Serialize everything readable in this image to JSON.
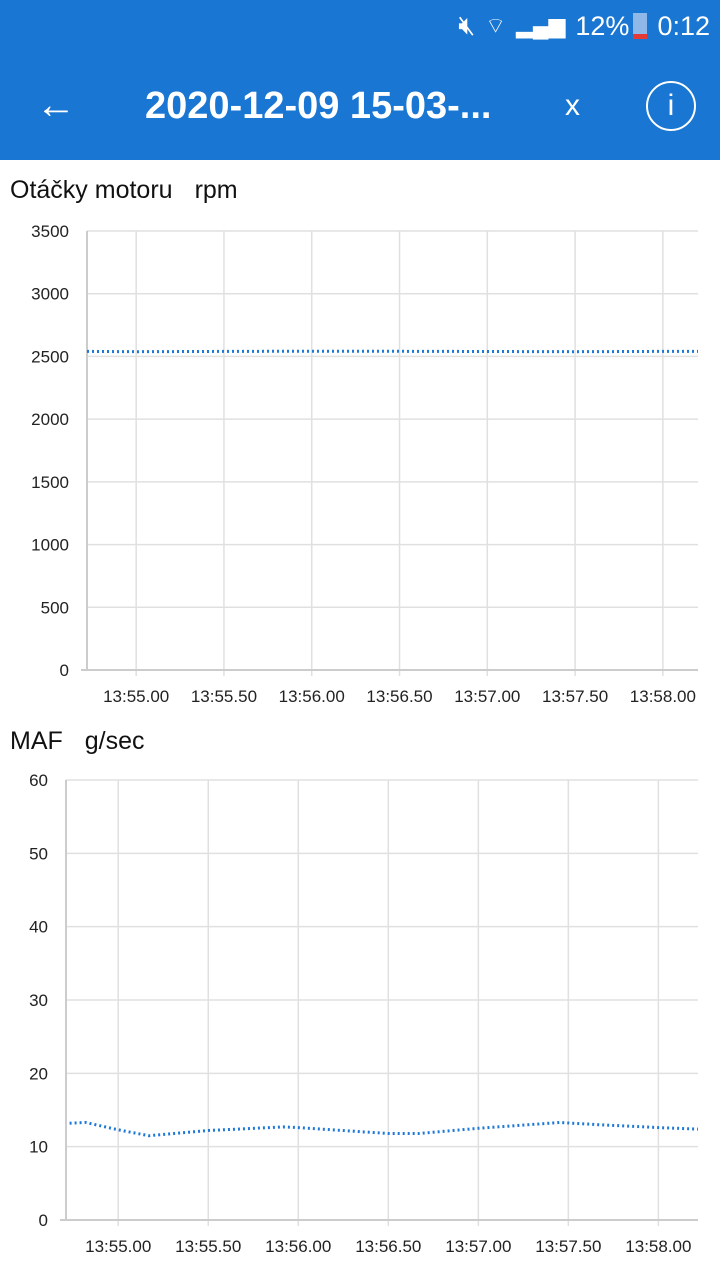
{
  "status_bar": {
    "icons": [
      "mute-icon",
      "wifi-icon",
      "signal-icon"
    ],
    "battery": "12%",
    "time": "0:12"
  },
  "app_bar": {
    "title": "2020-12-09 15-03-...",
    "close_label": "x",
    "info_label": "i"
  },
  "colors": {
    "accent": "#1976d2",
    "line": "#1e78d8",
    "grid": "#e0e0e0"
  },
  "chart_data": [
    {
      "type": "line",
      "title": "Otáčky motoru",
      "unit": "rpm",
      "ylim": [
        0,
        3500
      ],
      "yticks": [
        0,
        500,
        1000,
        1500,
        2000,
        2500,
        3000,
        3500
      ],
      "xlim": [
        54.72,
        58.2
      ],
      "xticks": [
        55.0,
        55.5,
        56.0,
        56.5,
        57.0,
        57.5,
        58.0
      ],
      "xtick_labels": [
        "13:55.00",
        "13:55.50",
        "13:56.00",
        "13:56.50",
        "13:57.00",
        "13:57.50",
        "13:58.00"
      ],
      "grid": true,
      "line_style": "dotted",
      "x": [
        54.72,
        55.0,
        55.5,
        56.0,
        56.5,
        57.0,
        57.5,
        58.0,
        58.2
      ],
      "values": [
        2540,
        2538,
        2540,
        2542,
        2541,
        2539,
        2538,
        2540,
        2540
      ]
    },
    {
      "type": "line",
      "title": "MAF",
      "unit": "g/sec",
      "ylim": [
        0,
        60
      ],
      "yticks": [
        0,
        10,
        20,
        30,
        40,
        50,
        60
      ],
      "xlim": [
        54.71,
        58.22
      ],
      "xticks": [
        55.0,
        55.5,
        56.0,
        56.5,
        57.0,
        57.5,
        58.0
      ],
      "xtick_labels": [
        "13:55.00",
        "13:55.50",
        "13:56.00",
        "13:56.50",
        "13:57.00",
        "13:57.50",
        "13:58.00"
      ],
      "grid": true,
      "line_style": "dotted",
      "x": [
        54.73,
        54.82,
        55.0,
        55.17,
        55.5,
        55.92,
        56.0,
        56.5,
        56.67,
        57.0,
        57.45,
        57.67,
        58.0,
        58.22
      ],
      "values": [
        13.2,
        13.3,
        12.3,
        11.5,
        12.2,
        12.7,
        12.6,
        11.8,
        11.8,
        12.5,
        13.3,
        13.0,
        12.6,
        12.4
      ]
    }
  ]
}
